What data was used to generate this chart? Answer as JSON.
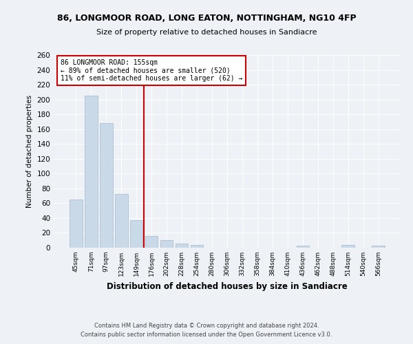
{
  "title": "86, LONGMOOR ROAD, LONG EATON, NOTTINGHAM, NG10 4FP",
  "subtitle": "Size of property relative to detached houses in Sandiacre",
  "xlabel": "Distribution of detached houses by size in Sandiacre",
  "ylabel": "Number of detached properties",
  "categories": [
    "45sqm",
    "71sqm",
    "97sqm",
    "123sqm",
    "149sqm",
    "176sqm",
    "202sqm",
    "228sqm",
    "254sqm",
    "280sqm",
    "306sqm",
    "332sqm",
    "358sqm",
    "384sqm",
    "410sqm",
    "436sqm",
    "462sqm",
    "488sqm",
    "514sqm",
    "540sqm",
    "566sqm"
  ],
  "values": [
    65,
    205,
    168,
    72,
    37,
    16,
    10,
    6,
    4,
    0,
    0,
    0,
    0,
    0,
    0,
    3,
    0,
    0,
    4,
    0,
    3
  ],
  "bar_color": "#c9d9e8",
  "bar_edge_color": "#a0b8cc",
  "property_line_x": 4.5,
  "annotation_title": "86 LONGMOOR ROAD: 155sqm",
  "annotation_line1": "← 89% of detached houses are smaller (520)",
  "annotation_line2": "11% of semi-detached houses are larger (62) →",
  "annotation_box_color": "#ffffff",
  "annotation_box_edge_color": "#cc0000",
  "vline_color": "#cc0000",
  "ylim": [
    0,
    260
  ],
  "yticks": [
    0,
    20,
    40,
    60,
    80,
    100,
    120,
    140,
    160,
    180,
    200,
    220,
    240,
    260
  ],
  "footer1": "Contains HM Land Registry data © Crown copyright and database right 2024.",
  "footer2": "Contains public sector information licensed under the Open Government Licence v3.0.",
  "bg_color": "#eef2f7",
  "plot_bg_color": "#eef2f7"
}
